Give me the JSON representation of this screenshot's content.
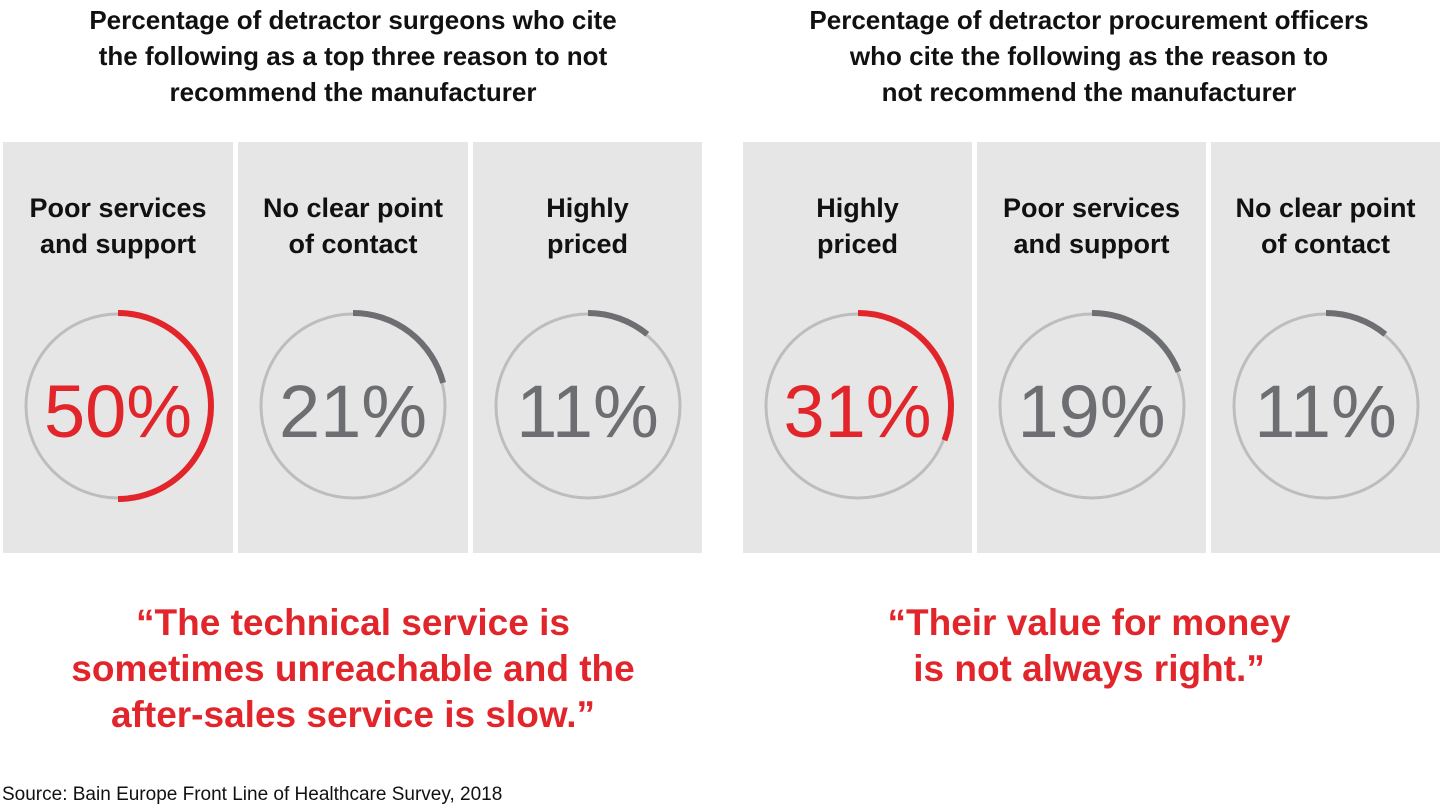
{
  "left": {
    "title": "Percentage of detractor surgeons who cite the following as a top three reason to not recommend the manufacturer",
    "title_lines": [
      "Percentage of detractor surgeons who cite",
      "the following as a top three reason to not",
      "recommend the manufacturer"
    ],
    "items": [
      {
        "label1": "Poor services",
        "label2": "and support",
        "pct": "50%",
        "value": 50,
        "highlight": true
      },
      {
        "label1": "No clear point",
        "label2": "of contact",
        "pct": "21%",
        "value": 21,
        "highlight": false
      },
      {
        "label1": "Highly",
        "label2": "priced",
        "pct": "11%",
        "value": 11,
        "highlight": false
      }
    ],
    "quote_lines": [
      "“The technical service is",
      "sometimes unreachable and the",
      "after-sales service is slow.”"
    ]
  },
  "right": {
    "title": "Percentage of detractor procurement officers who cite the following as the reason to not recommend the manufacturer",
    "title_lines": [
      "Percentage of detractor procurement officers",
      "who cite the following as the reason to",
      "not recommend the manufacturer"
    ],
    "items": [
      {
        "label1": "Highly",
        "label2": "priced",
        "pct": "31%",
        "value": 31,
        "highlight": true
      },
      {
        "label1": "Poor services",
        "label2": "and support",
        "pct": "19%",
        "value": 19,
        "highlight": false
      },
      {
        "label1": "No clear point",
        "label2": "of contact",
        "pct": "11%",
        "value": 11,
        "highlight": false
      }
    ],
    "quote_lines": [
      "“Their value for money",
      "is not always right.”"
    ]
  },
  "source": "Source: Bain Europe Front Line of Healthcare Survey, 2018",
  "colors": {
    "highlight": "#e1252a",
    "neutral": "#6d6e71",
    "track": "#bdbdbd",
    "panel": "#e6e6e6"
  },
  "chart_data": [
    {
      "type": "pie",
      "title": "Percentage of detractor surgeons who cite the following as a top three reason to not recommend the manufacturer",
      "categories": [
        "Poor services and support",
        "No clear point of contact",
        "Highly priced"
      ],
      "values": [
        50,
        21,
        11
      ],
      "unit": "%"
    },
    {
      "type": "pie",
      "title": "Percentage of detractor procurement officers who cite the following as the reason to not recommend the manufacturer",
      "categories": [
        "Highly priced",
        "Poor services and support",
        "No clear point of contact"
      ],
      "values": [
        31,
        19,
        11
      ],
      "unit": "%"
    }
  ]
}
